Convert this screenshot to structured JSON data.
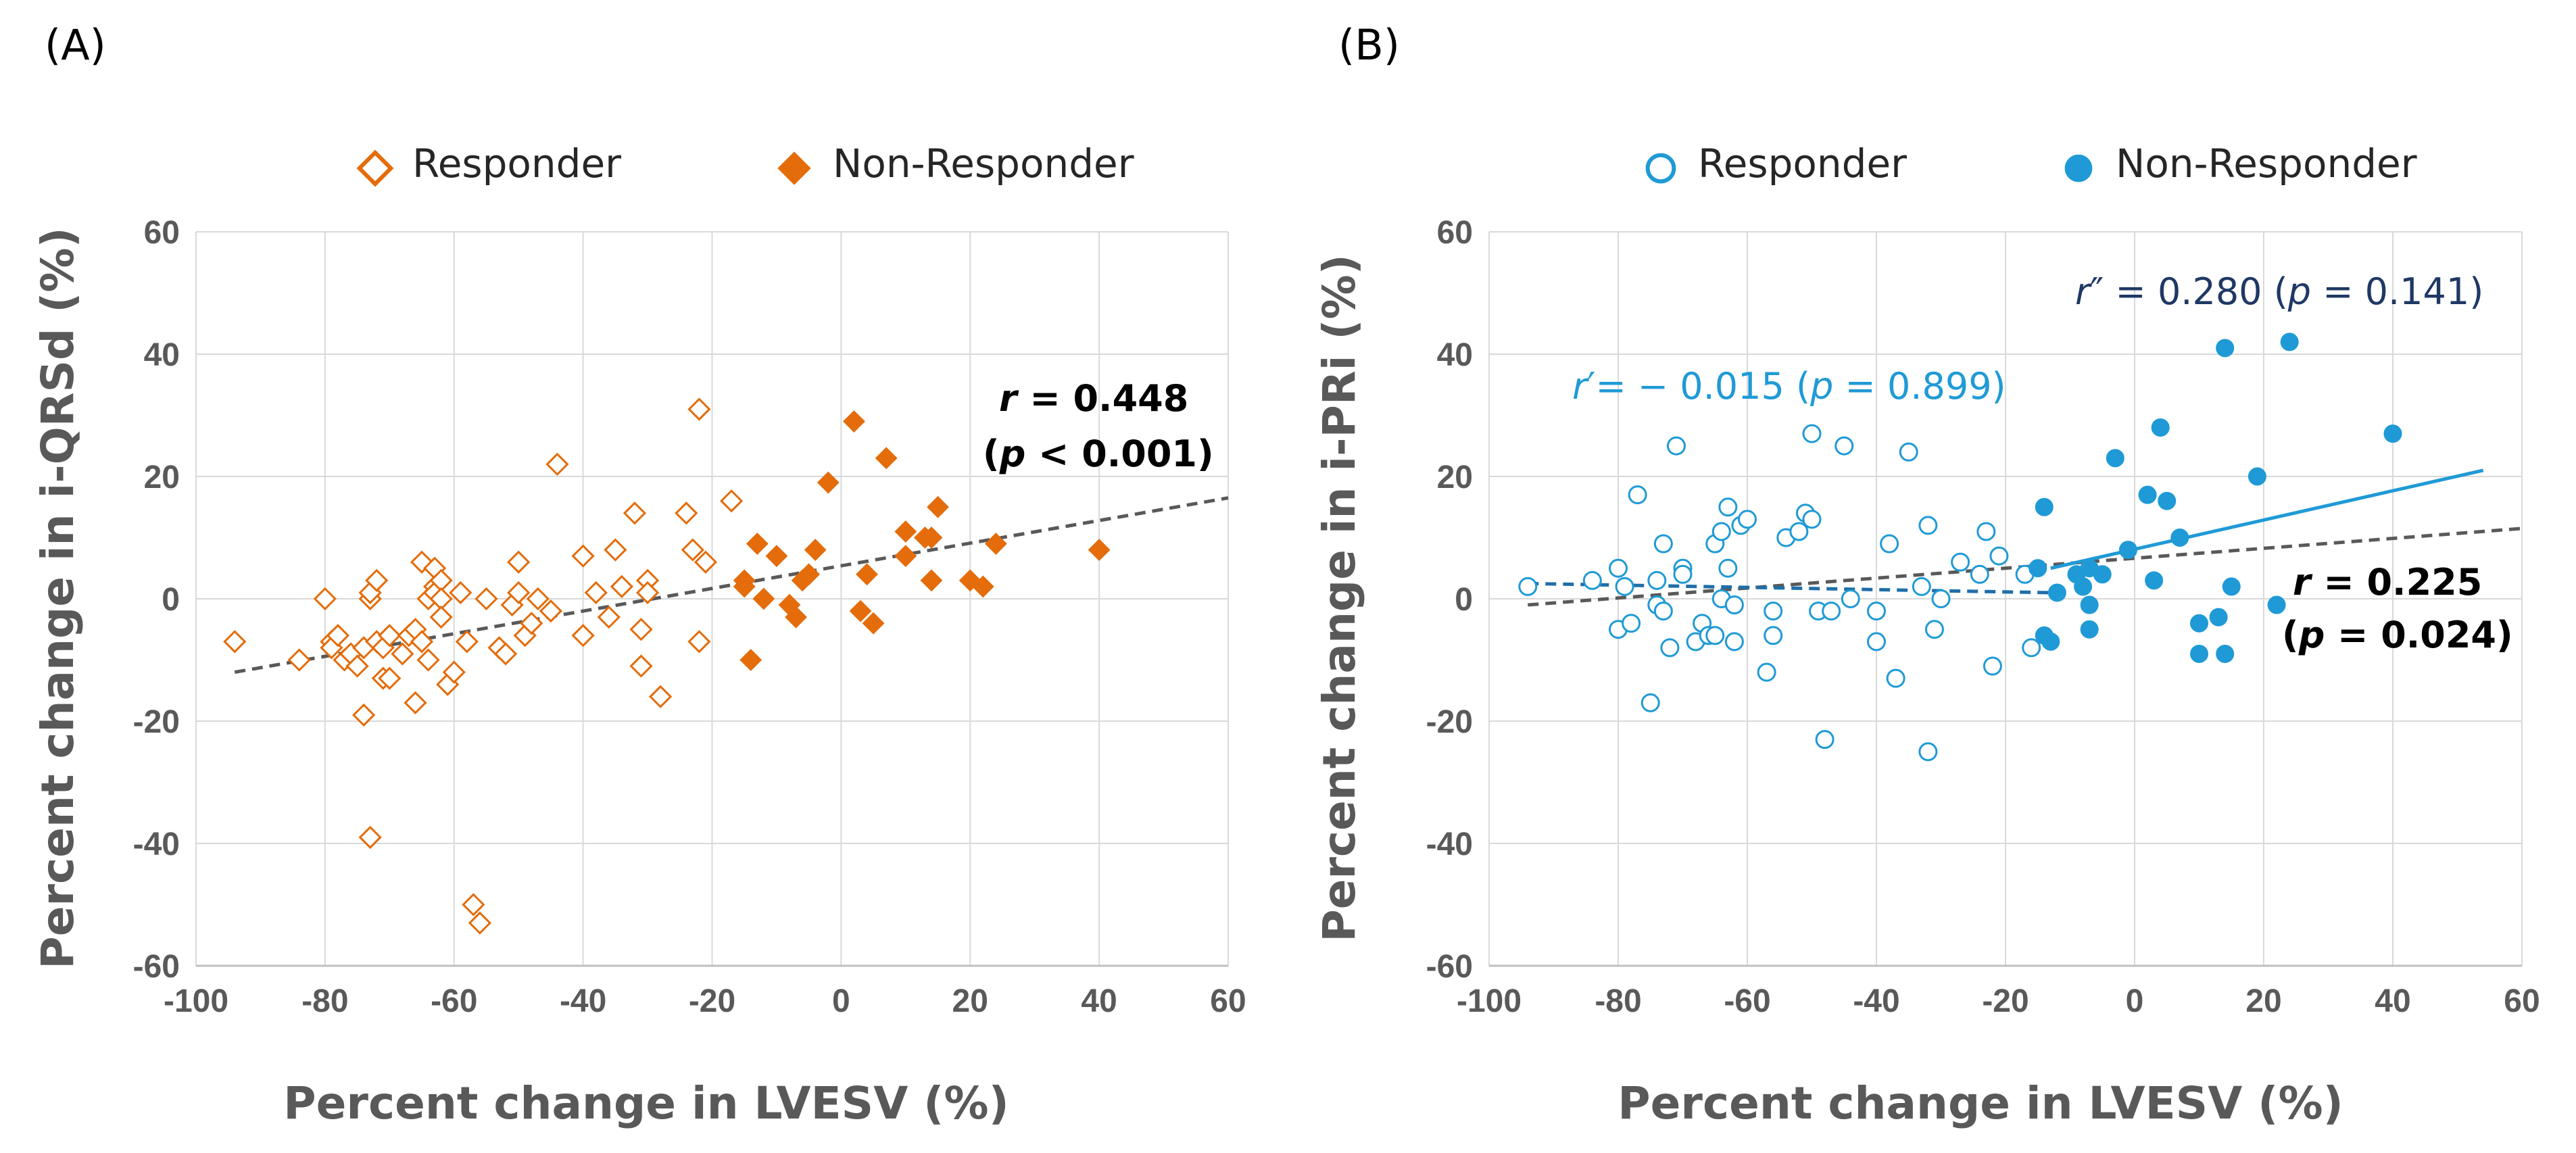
{
  "chart_data": [
    {
      "type": "scatter",
      "panel_label": "(A)",
      "xlabel": "Percent change in LVESV (%)",
      "ylabel": "Percent change in i-QRSd (%)",
      "xlim": [
        -100,
        60
      ],
      "ylim": [
        -60,
        60
      ],
      "xticks": [
        "-100",
        "-80",
        "-60",
        "-40",
        "-20",
        "0",
        "20",
        "40",
        "60"
      ],
      "yticks": [
        "60",
        "40",
        "20",
        "0",
        "-20",
        "-40",
        "-60"
      ],
      "grid": true,
      "color": "#e46c0a",
      "legend": {
        "placement": "top-center",
        "entries": [
          "Responder",
          "Non-Responder"
        ]
      },
      "series": [
        {
          "name": "Responder",
          "marker": "diamond-open",
          "points": [
            [
              -94,
              -7
            ],
            [
              -84,
              -10
            ],
            [
              -80,
              0
            ],
            [
              -79,
              -7
            ],
            [
              -79,
              -8
            ],
            [
              -78,
              -6
            ],
            [
              -77,
              -10
            ],
            [
              -76,
              -9
            ],
            [
              -75,
              -11
            ],
            [
              -74,
              -8
            ],
            [
              -74,
              -19
            ],
            [
              -73,
              0
            ],
            [
              -73,
              1
            ],
            [
              -72,
              -7
            ],
            [
              -72,
              3
            ],
            [
              -71,
              -8
            ],
            [
              -71,
              -13
            ],
            [
              -70,
              -6
            ],
            [
              -70,
              -13
            ],
            [
              -68,
              -9
            ],
            [
              -67,
              -6
            ],
            [
              -66,
              -5
            ],
            [
              -66,
              -17
            ],
            [
              -65,
              6
            ],
            [
              -65,
              -7
            ],
            [
              -64,
              0
            ],
            [
              -64,
              -10
            ],
            [
              -63,
              5
            ],
            [
              -63,
              2
            ],
            [
              -63,
              1
            ],
            [
              -62,
              3
            ],
            [
              -62,
              0
            ],
            [
              -62,
              -3
            ],
            [
              -61,
              -14
            ],
            [
              -60,
              -12
            ],
            [
              -59,
              1
            ],
            [
              -58,
              -7
            ],
            [
              -73,
              -39
            ],
            [
              -57,
              -50
            ],
            [
              -56,
              -53
            ],
            [
              -55,
              0
            ],
            [
              -53,
              -8
            ],
            [
              -52,
              -9
            ],
            [
              -51,
              -1
            ],
            [
              -50,
              6
            ],
            [
              -50,
              1
            ],
            [
              -49,
              -6
            ],
            [
              -48,
              -4
            ],
            [
              -47,
              0
            ],
            [
              -45,
              -2
            ],
            [
              -44,
              22
            ],
            [
              -40,
              7
            ],
            [
              -40,
              -6
            ],
            [
              -38,
              1
            ],
            [
              -36,
              -3
            ],
            [
              -35,
              8
            ],
            [
              -34,
              2
            ],
            [
              -32,
              14
            ],
            [
              -31,
              -11
            ],
            [
              -31,
              -5
            ],
            [
              -30,
              3
            ],
            [
              -30,
              1
            ],
            [
              -28,
              -16
            ],
            [
              -24,
              14
            ],
            [
              -23,
              8
            ],
            [
              -22,
              31
            ],
            [
              -22,
              -7
            ],
            [
              -21,
              6
            ],
            [
              -17,
              16
            ]
          ]
        },
        {
          "name": "Non-Responder",
          "marker": "diamond-filled",
          "points": [
            [
              -15,
              2
            ],
            [
              -15,
              3
            ],
            [
              -14,
              -10
            ],
            [
              -13,
              9
            ],
            [
              -12,
              0
            ],
            [
              -10,
              7
            ],
            [
              -8,
              -1
            ],
            [
              -7,
              -3
            ],
            [
              -6,
              3
            ],
            [
              -5,
              4
            ],
            [
              -4,
              8
            ],
            [
              -2,
              19
            ],
            [
              2,
              29
            ],
            [
              3,
              -2
            ],
            [
              4,
              4
            ],
            [
              5,
              -4
            ],
            [
              7,
              23
            ],
            [
              10,
              11
            ],
            [
              10,
              7
            ],
            [
              13,
              10
            ],
            [
              14,
              10
            ],
            [
              14,
              3
            ],
            [
              15,
              15
            ],
            [
              20,
              3
            ],
            [
              22,
              2
            ],
            [
              24,
              9
            ],
            [
              40,
              8
            ]
          ]
        }
      ],
      "fit_lines": [
        {
          "name": "overall",
          "style": "dashed",
          "color": "#595959",
          "points": [
            [
              -94,
              -12
            ],
            [
              60,
              16.5
            ]
          ]
        }
      ],
      "annotations": [
        {
          "parts": [
            {
              "text": "r",
              "italic": true
            },
            {
              "text": " = 0.448",
              "italic": false
            }
          ],
          "color": "#000000"
        },
        {
          "parts": [
            {
              "text": "(",
              "italic": false
            },
            {
              "text": "p",
              "italic": true
            },
            {
              "text": " < 0.001)",
              "italic": false
            }
          ],
          "color": "#000000"
        }
      ]
    },
    {
      "type": "scatter",
      "panel_label": "(B)",
      "xlabel": "Percent change in LVESV (%)",
      "ylabel": "Percent change in i-PRi (%)",
      "xlim": [
        -100,
        60
      ],
      "ylim": [
        -60,
        60
      ],
      "xticks": [
        "-100",
        "-80",
        "-60",
        "-40",
        "-20",
        "0",
        "20",
        "40",
        "60"
      ],
      "yticks": [
        "60",
        "40",
        "20",
        "0",
        "-20",
        "-40",
        "-60"
      ],
      "grid": true,
      "color": "#1f9ad6",
      "legend": {
        "placement": "top-center",
        "entries": [
          "Responder",
          "Non-Responder"
        ]
      },
      "series": [
        {
          "name": "Responder",
          "marker": "circle-open",
          "points": [
            [
              -94,
              2
            ],
            [
              -84,
              3
            ],
            [
              -80,
              5
            ],
            [
              -80,
              -5
            ],
            [
              -79,
              2
            ],
            [
              -78,
              -4
            ],
            [
              -77,
              17
            ],
            [
              -75,
              -17
            ],
            [
              -74,
              3
            ],
            [
              -74,
              -1
            ],
            [
              -73,
              -2
            ],
            [
              -73,
              9
            ],
            [
              -72,
              -8
            ],
            [
              -71,
              25
            ],
            [
              -70,
              5
            ],
            [
              -70,
              4
            ],
            [
              -68,
              -7
            ],
            [
              -67,
              -4
            ],
            [
              -66,
              -6
            ],
            [
              -65,
              -6
            ],
            [
              -65,
              9
            ],
            [
              -64,
              0
            ],
            [
              -64,
              11
            ],
            [
              -63,
              15
            ],
            [
              -63,
              5
            ],
            [
              -62,
              -7
            ],
            [
              -62,
              -1
            ],
            [
              -61,
              12
            ],
            [
              -60,
              13
            ],
            [
              -57,
              -12
            ],
            [
              -56,
              -2
            ],
            [
              -56,
              -6
            ],
            [
              -54,
              10
            ],
            [
              -52,
              11
            ],
            [
              -51,
              14
            ],
            [
              -50,
              13
            ],
            [
              -50,
              27
            ],
            [
              -49,
              -2
            ],
            [
              -48,
              -23
            ],
            [
              -47,
              -2
            ],
            [
              -45,
              25
            ],
            [
              -44,
              0
            ],
            [
              -40,
              -7
            ],
            [
              -40,
              -2
            ],
            [
              -38,
              9
            ],
            [
              -37,
              -13
            ],
            [
              -35,
              24
            ],
            [
              -33,
              2
            ],
            [
              -32,
              12
            ],
            [
              -32,
              -25
            ],
            [
              -31,
              -5
            ],
            [
              -30,
              0
            ],
            [
              -27,
              6
            ],
            [
              -24,
              4
            ],
            [
              -23,
              11
            ],
            [
              -22,
              -11
            ],
            [
              -21,
              7
            ],
            [
              -17,
              4
            ],
            [
              -16,
              -8
            ]
          ]
        },
        {
          "name": "Non-Responder",
          "marker": "circle-filled",
          "points": [
            [
              -15,
              5
            ],
            [
              -14,
              -6
            ],
            [
              -14,
              15
            ],
            [
              -13,
              -7
            ],
            [
              -12,
              1
            ],
            [
              -9,
              4
            ],
            [
              -8,
              2
            ],
            [
              -7,
              5
            ],
            [
              -7,
              -1
            ],
            [
              -7,
              -5
            ],
            [
              -5,
              4
            ],
            [
              -3,
              23
            ],
            [
              -1,
              8
            ],
            [
              2,
              17
            ],
            [
              3,
              3
            ],
            [
              4,
              28
            ],
            [
              5,
              16
            ],
            [
              7,
              10
            ],
            [
              10,
              -4
            ],
            [
              10,
              -9
            ],
            [
              13,
              -3
            ],
            [
              14,
              -9
            ],
            [
              14,
              41
            ],
            [
              15,
              2
            ],
            [
              19,
              20
            ],
            [
              22,
              -1
            ],
            [
              24,
              42
            ],
            [
              40,
              27
            ]
          ]
        }
      ],
      "fit_lines": [
        {
          "name": "overall",
          "style": "dashed",
          "color": "#595959",
          "points": [
            [
              -94,
              -1
            ],
            [
              60,
              11.5
            ]
          ]
        },
        {
          "name": "Responder",
          "style": "dashed",
          "color": "#1f6ea8",
          "points": [
            [
              -94,
              2.5
            ],
            [
              -13,
              1
            ]
          ]
        },
        {
          "name": "Non-Responder",
          "style": "solid",
          "color": "#1f9ad6",
          "points": [
            [
              -13,
              5
            ],
            [
              54,
              21
            ]
          ]
        }
      ],
      "annotations": [
        {
          "parts": [
            {
              "text": "r",
              "italic": true
            },
            {
              "text": "″ = 0.280  (",
              "italic": false
            },
            {
              "text": "p",
              "italic": true
            },
            {
              "text": " = 0.141)",
              "italic": false
            }
          ],
          "color": "#1f3864"
        },
        {
          "parts": [
            {
              "text": "r",
              "italic": true
            },
            {
              "text": "′= − 0.015  (",
              "italic": false
            },
            {
              "text": "p",
              "italic": true
            },
            {
              "text": " = 0.899)",
              "italic": false
            }
          ],
          "color": "#1f9ad6"
        },
        {
          "parts": [
            {
              "text": "r",
              "italic": true
            },
            {
              "text": "  = 0.225",
              "italic": false
            }
          ],
          "color": "#000000"
        },
        {
          "parts": [
            {
              "text": "(",
              "italic": false
            },
            {
              "text": "p",
              "italic": true
            },
            {
              "text": " = 0.024)",
              "italic": false
            }
          ],
          "color": "#000000"
        }
      ]
    }
  ]
}
